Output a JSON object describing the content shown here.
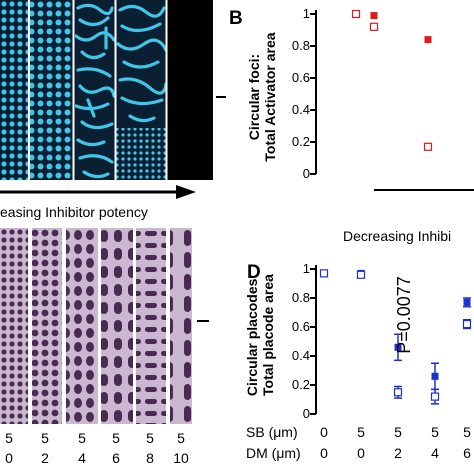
{
  "figure": {
    "panel_a": {
      "caption": "easing Inhibitor potency",
      "colors": {
        "background": "#0b1f33",
        "stripe": "#3fc6e8",
        "dark_panel": "#000000"
      }
    },
    "panel_b": {
      "letter": "B",
      "ylabel_line1": "Circular foci:",
      "ylabel_line2": "Total Activator area",
      "xlabel": "Decreasing Inhibi"
    },
    "panel_c": {
      "doses": [
        {
          "sb": "5",
          "dm": "0"
        },
        {
          "sb": "5",
          "dm": "2"
        },
        {
          "sb": "5",
          "dm": "4"
        },
        {
          "sb": "5",
          "dm": "6"
        },
        {
          "sb": "5",
          "dm": "8"
        },
        {
          "sb": "5",
          "dm": "10"
        }
      ],
      "colors": {
        "tissue": "#c9b8cf",
        "placode": "#4a2a52"
      }
    },
    "panel_d": {
      "letter": "D",
      "ylabel_line1": "Circular placodes:",
      "ylabel_line2": "Total placode area",
      "annotation": "P=0.0077",
      "sb_label": "SB (μm)",
      "dm_label": "DM (μm)",
      "sb_values": [
        "0",
        "5",
        "5",
        "5",
        "5"
      ],
      "dm_values": [
        "0",
        "0",
        "2",
        "4",
        "6"
      ]
    }
  },
  "chart_data": [
    {
      "type": "scatter",
      "panel": "B",
      "title": "",
      "ylabel": "Circular foci: Total Activator area",
      "xlabel": "Decreasing Inhibi",
      "ylim": [
        0,
        1
      ],
      "yticks": [
        "0",
        "0.2",
        "0.4",
        "0.6",
        "0.8",
        "1"
      ],
      "grid": false,
      "colors": {
        "filled": "#e01a1a",
        "open": "#e01a1a"
      },
      "series": [
        {
          "marker": "filled-square",
          "x": [
            1,
            2,
            3
          ],
          "y": [
            1.0,
            0.99,
            0.84
          ]
        },
        {
          "marker": "open-square",
          "x": [
            1,
            2,
            3
          ],
          "y": [
            1.0,
            0.92,
            0.17
          ]
        }
      ]
    },
    {
      "type": "scatter",
      "panel": "D",
      "title": "",
      "ylabel": "Circular placodes: Total placode area",
      "categories": [
        "SB 0 / DM 0",
        "SB 5 / DM 0",
        "SB 5 / DM 2",
        "SB 5 / DM 4",
        "SB 5 / DM 6"
      ],
      "ylim": [
        0,
        1
      ],
      "yticks": [
        "0",
        "0.2",
        "0.4",
        "0.6",
        "0.8",
        "1"
      ],
      "grid": false,
      "colors": {
        "filled": "#1c2fd0",
        "open": "#1c2fd0"
      },
      "series": [
        {
          "marker": "filled-square",
          "y": [
            0.97,
            0.97,
            0.46,
            0.26,
            0.77
          ],
          "err": [
            0.0,
            0.01,
            0.09,
            0.09,
            0.03
          ]
        },
        {
          "marker": "open-square",
          "y": [
            0.97,
            0.96,
            0.15,
            0.12,
            0.62
          ],
          "err": [
            0.0,
            0.01,
            0.04,
            0.05,
            0.03
          ]
        }
      ]
    }
  ]
}
